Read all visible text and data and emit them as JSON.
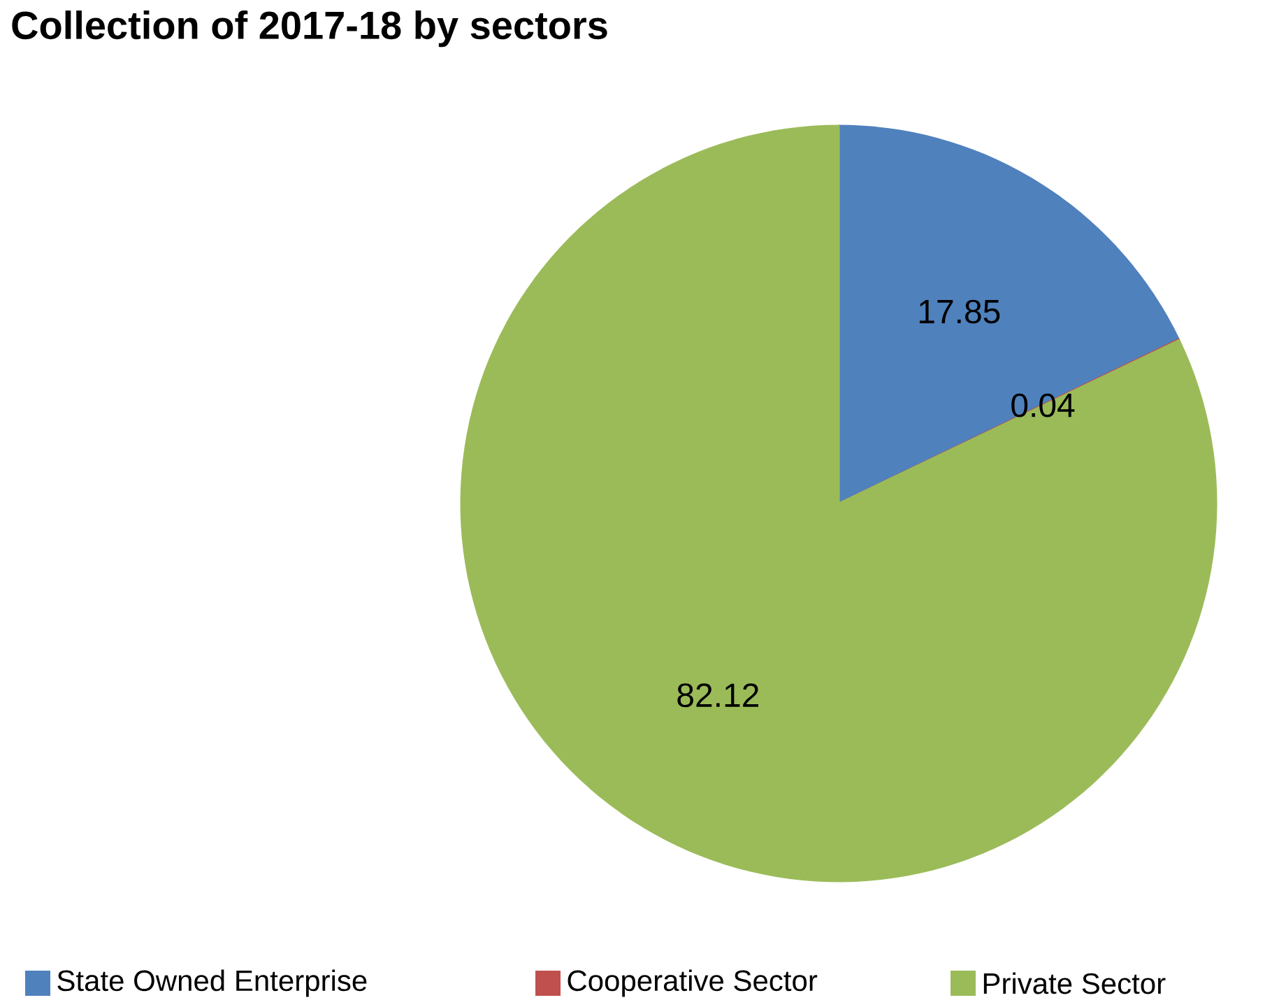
{
  "chart_data": {
    "type": "pie",
    "title": "Collection of 2017-18 by sectors",
    "categories": [
      "State Owned Enterprise",
      "Cooperative Sector",
      "Private Sector"
    ],
    "values": [
      17.85,
      0.04,
      82.12
    ],
    "colors": [
      "#4f81bd",
      "#c0504d",
      "#9bbb59"
    ],
    "data_labels": true,
    "legend": "bottom"
  }
}
